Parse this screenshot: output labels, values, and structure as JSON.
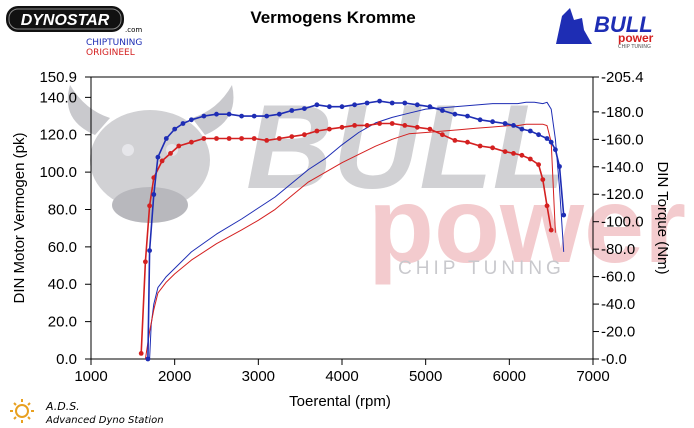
{
  "branding": {
    "dynostar": "DYNOSTAR",
    "dynostar_suffix": ".com",
    "chiptuning": "CHIPTUNING",
    "origineel": "ORIGINEEL",
    "bull": "BULL",
    "power": "power",
    "chip_tuning_small": "CHIP TUNING",
    "watermark_bull": "BULL",
    "watermark_power": "power",
    "watermark_chip": "CHIP TUNING",
    "ads_title": "A.D.S.",
    "ads_subtitle": "Advanced Dyno Station"
  },
  "colors": {
    "tuned": "#1e2db4",
    "stock": "#d42020",
    "watermark_gray": "#c9c9cd",
    "watermark_pink": "#f1c3c6",
    "logo_red": "#d42020",
    "logo_blue": "#1e2db4"
  },
  "chart_data": {
    "type": "line",
    "title": "Vermogens Kromme",
    "xlabel": "Toerental (rpm)",
    "ylabel": "DIN Motor Vermogen (pk)",
    "y2label": "DIN Torque (Nm)",
    "xlim": [
      1000,
      7000
    ],
    "ylim": [
      0,
      150.9
    ],
    "y2lim": [
      0,
      205.4
    ],
    "xticks": [
      "1000",
      "2000",
      "3000",
      "4000",
      "5000",
      "6000",
      "7000"
    ],
    "yticks": [
      "0.0",
      "20.0",
      "40.0",
      "60.0",
      "80.0",
      "100.0",
      "120.0",
      "140.0",
      "150.9"
    ],
    "y2ticks": [
      "0.0",
      "20.0",
      "40.0",
      "60.0",
      "80.0",
      "100.0",
      "120.0",
      "140.0",
      "160.0",
      "180.0",
      "205.4"
    ],
    "grid": false,
    "series": [
      {
        "key": "tuned_power",
        "axis": "left",
        "color": "#1e2db4",
        "markers": true,
        "x": [
          1680,
          1700,
          1750,
          1800,
          1900,
          2000,
          2100,
          2200,
          2350,
          2500,
          2650,
          2800,
          2950,
          3100,
          3250,
          3400,
          3550,
          3700,
          3850,
          4000,
          4150,
          4300,
          4450,
          4600,
          4750,
          4900,
          5050,
          5200,
          5350,
          5500,
          5650,
          5800,
          5950,
          6050,
          6150,
          6250,
          6350,
          6450,
          6500,
          6550,
          6600,
          6650
        ],
        "y": [
          0,
          58,
          88,
          108,
          118,
          123,
          126,
          128,
          130,
          131,
          131,
          130,
          130,
          130,
          131,
          133,
          134,
          136,
          135,
          135,
          136,
          137,
          138,
          137,
          137,
          136,
          135,
          133,
          131,
          130,
          128,
          127,
          126,
          125,
          123,
          122,
          120,
          118,
          116,
          112,
          103,
          77
        ]
      },
      {
        "key": "stock_power",
        "axis": "left",
        "color": "#d42020",
        "markers": true,
        "x": [
          1600,
          1650,
          1700,
          1750,
          1850,
          1950,
          2050,
          2200,
          2350,
          2500,
          2650,
          2800,
          2950,
          3100,
          3250,
          3400,
          3550,
          3700,
          3850,
          4000,
          4150,
          4300,
          4450,
          4600,
          4750,
          4900,
          5050,
          5200,
          5350,
          5500,
          5650,
          5800,
          5950,
          6050,
          6150,
          6250,
          6350,
          6400,
          6450,
          6500
        ],
        "y": [
          3,
          52,
          82,
          97,
          106,
          110,
          114,
          116,
          118,
          118,
          118,
          118,
          118,
          117,
          118,
          119,
          120,
          122,
          123,
          124,
          125,
          125,
          126,
          126,
          125,
          124,
          123,
          120,
          117,
          116,
          114,
          113,
          111,
          110,
          109,
          107,
          104,
          96,
          82,
          69
        ]
      },
      {
        "key": "tuned_torque",
        "axis": "right",
        "color": "#1e2db4",
        "markers": false,
        "x": [
          1700,
          1720,
          1750,
          1800,
          1900,
          2000,
          2200,
          2500,
          2800,
          3000,
          3200,
          3400,
          3600,
          3800,
          4000,
          4200,
          4400,
          4600,
          4800,
          5000,
          5200,
          5400,
          5600,
          5800,
          6000,
          6100,
          6200,
          6300,
          6400,
          6450,
          6500,
          6550,
          6600,
          6650
        ],
        "y": [
          0,
          25,
          40,
          52,
          60,
          66,
          78,
          91,
          102,
          110,
          118,
          128,
          138,
          146,
          156,
          165,
          172,
          176,
          179,
          182,
          183,
          184,
          185,
          186,
          186,
          186,
          187,
          187,
          186,
          187,
          182,
          160,
          125,
          78
        ]
      },
      {
        "key": "stock_torque",
        "axis": "right",
        "color": "#d42020",
        "markers": false,
        "x": [
          1650,
          1700,
          1750,
          1800,
          1900,
          2000,
          2200,
          2500,
          2800,
          3000,
          3200,
          3400,
          3600,
          3800,
          4000,
          4200,
          4400,
          4600,
          4800,
          5000,
          5200,
          5400,
          5600,
          5800,
          6000,
          6100,
          6200,
          6300,
          6400,
          6450,
          6500,
          6550
        ],
        "y": [
          0,
          20,
          36,
          48,
          56,
          62,
          72,
          84,
          94,
          101,
          109,
          119,
          129,
          136,
          143,
          149,
          155,
          160,
          164,
          165,
          166,
          167,
          168,
          169,
          170,
          170,
          171,
          171,
          171,
          170,
          158,
          92
        ]
      }
    ]
  }
}
